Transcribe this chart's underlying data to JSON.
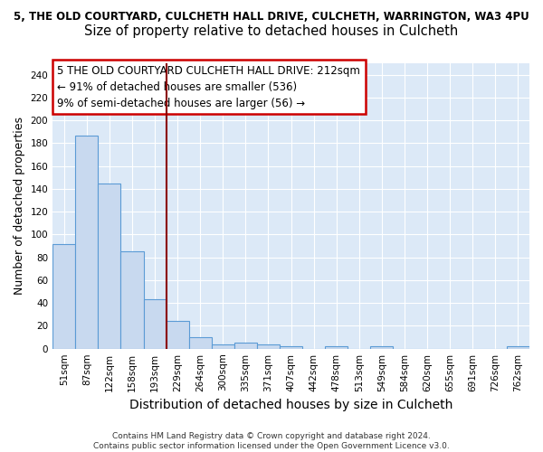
{
  "title_line1": "5, THE OLD COURTYARD, CULCHETH HALL DRIVE, CULCHETH, WARRINGTON, WA3 4PU",
  "title_line2": "Size of property relative to detached houses in Culcheth",
  "xlabel": "Distribution of detached houses by size in Culcheth",
  "ylabel": "Number of detached properties",
  "categories": [
    "51sqm",
    "87sqm",
    "122sqm",
    "158sqm",
    "193sqm",
    "229sqm",
    "264sqm",
    "300sqm",
    "335sqm",
    "371sqm",
    "407sqm",
    "442sqm",
    "478sqm",
    "513sqm",
    "549sqm",
    "584sqm",
    "620sqm",
    "655sqm",
    "691sqm",
    "726sqm",
    "762sqm"
  ],
  "values": [
    92,
    187,
    145,
    85,
    43,
    24,
    10,
    4,
    5,
    4,
    2,
    0,
    2,
    0,
    2,
    0,
    0,
    0,
    0,
    0,
    2
  ],
  "bar_color": "#c8d9ef",
  "bar_edge_color": "#5b9bd5",
  "vline_x": 4.5,
  "vline_color": "#8b0000",
  "annotation_text": "5 THE OLD COURTYARD CULCHETH HALL DRIVE: 212sqm\n← 91% of detached houses are smaller (536)\n9% of semi-detached houses are larger (56) →",
  "annotation_box_color": "#cc0000",
  "ylim": [
    0,
    250
  ],
  "yticks": [
    0,
    20,
    40,
    60,
    80,
    100,
    120,
    140,
    160,
    180,
    200,
    220,
    240
  ],
  "footer": "Contains HM Land Registry data © Crown copyright and database right 2024.\nContains public sector information licensed under the Open Government Licence v3.0.",
  "fig_bg_color": "#ffffff",
  "ax_bg_color": "#dce9f7",
  "grid_color": "#ffffff",
  "title1_fontsize": 8.5,
  "title2_fontsize": 10.5,
  "axis_label_fontsize": 9,
  "tick_fontsize": 7.5,
  "annotation_fontsize": 8.5,
  "footer_fontsize": 6.5
}
